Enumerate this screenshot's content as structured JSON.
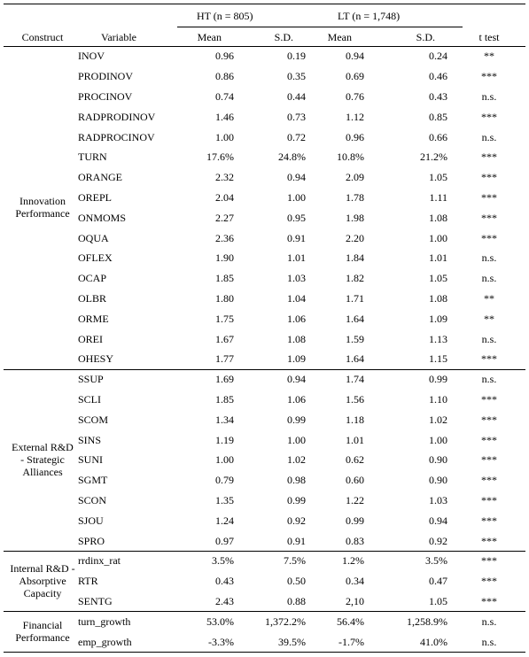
{
  "table": {
    "groups": [
      "HT (n = 805)",
      "LT (n = 1,748)"
    ],
    "columns": [
      "Construct",
      "Variable",
      "Mean",
      "S.D.",
      "Mean",
      "S.D.",
      "t test"
    ],
    "sections": [
      {
        "construct": "Innovation Performance",
        "rows": [
          [
            "INOV",
            "0.96",
            "0.19",
            "0.94",
            "0.24",
            "**"
          ],
          [
            "PRODINOV",
            "0.86",
            "0.35",
            "0.69",
            "0.46",
            "***"
          ],
          [
            "PROCINOV",
            "0.74",
            "0.44",
            "0.76",
            "0.43",
            "n.s."
          ],
          [
            "RADPRODINOV",
            "1.46",
            "0.73",
            "1.12",
            "0.85",
            "***"
          ],
          [
            "RADPROCINOV",
            "1.00",
            "0.72",
            "0.96",
            "0.66",
            "n.s."
          ],
          [
            "TURN",
            "17.6%",
            "24.8%",
            "10.8%",
            "21.2%",
            "***"
          ],
          [
            "ORANGE",
            "2.32",
            "0.94",
            "2.09",
            "1.05",
            "***"
          ],
          [
            "OREPL",
            "2.04",
            "1.00",
            "1.78",
            "1.11",
            "***"
          ],
          [
            "ONMOMS",
            "2.27",
            "0.95",
            "1.98",
            "1.08",
            "***"
          ],
          [
            "OQUA",
            "2.36",
            "0.91",
            "2.20",
            "1.00",
            "***"
          ],
          [
            "OFLEX",
            "1.90",
            "1.01",
            "1.84",
            "1.01",
            "n.s."
          ],
          [
            "OCAP",
            "1.85",
            "1.03",
            "1.82",
            "1.05",
            "n.s."
          ],
          [
            "OLBR",
            "1.80",
            "1.04",
            "1.71",
            "1.08",
            "**"
          ],
          [
            "ORME",
            "1.75",
            "1.06",
            "1.64",
            "1.09",
            "**"
          ],
          [
            "OREI",
            "1.67",
            "1.08",
            "1.59",
            "1.13",
            "n.s."
          ],
          [
            "OHESY",
            "1.77",
            "1.09",
            "1.64",
            "1.15",
            "***"
          ]
        ]
      },
      {
        "construct": "External R&D - Strategic Alliances",
        "rows": [
          [
            "SSUP",
            "1.69",
            "0.94",
            "1.74",
            "0.99",
            "n.s."
          ],
          [
            "SCLI",
            "1.85",
            "1.06",
            "1.56",
            "1.10",
            "***"
          ],
          [
            "SCOM",
            "1.34",
            "0.99",
            "1.18",
            "1.02",
            "***"
          ],
          [
            "SINS",
            "1.19",
            "1.00",
            "1.01",
            "1.00",
            "***"
          ],
          [
            "SUNI",
            "1.00",
            "1.02",
            "0.62",
            "0.90",
            "***"
          ],
          [
            "SGMT",
            "0.79",
            "0.98",
            "0.60",
            "0.90",
            "***"
          ],
          [
            "SCON",
            "1.35",
            "0.99",
            "1.22",
            "1.03",
            "***"
          ],
          [
            "SJOU",
            "1.24",
            "0.92",
            "0.99",
            "0.94",
            "***"
          ],
          [
            "SPRO",
            "0.97",
            "0.91",
            "0.83",
            "0.92",
            "***"
          ]
        ]
      },
      {
        "construct": "Internal R&D - Absorptive Capacity",
        "rows": [
          [
            "rrdinx_rat",
            "3.5%",
            "7.5%",
            "1.2%",
            "3.5%",
            "***"
          ],
          [
            "RTR",
            "0.43",
            "0.50",
            "0.34",
            "0.47",
            "***"
          ],
          [
            "SENTG",
            "2.43",
            "0.88",
            "2,10",
            "1.05",
            "***"
          ]
        ]
      },
      {
        "construct": "Financial Performance",
        "rows": [
          [
            "turn_growth",
            "53.0%",
            "1,372.2%",
            "56.4%",
            "1,258.9%",
            "n.s."
          ],
          [
            "emp_growth",
            "-3.3%",
            "39.5%",
            "-1.7%",
            "41.0%",
            "n.s."
          ]
        ]
      }
    ]
  }
}
